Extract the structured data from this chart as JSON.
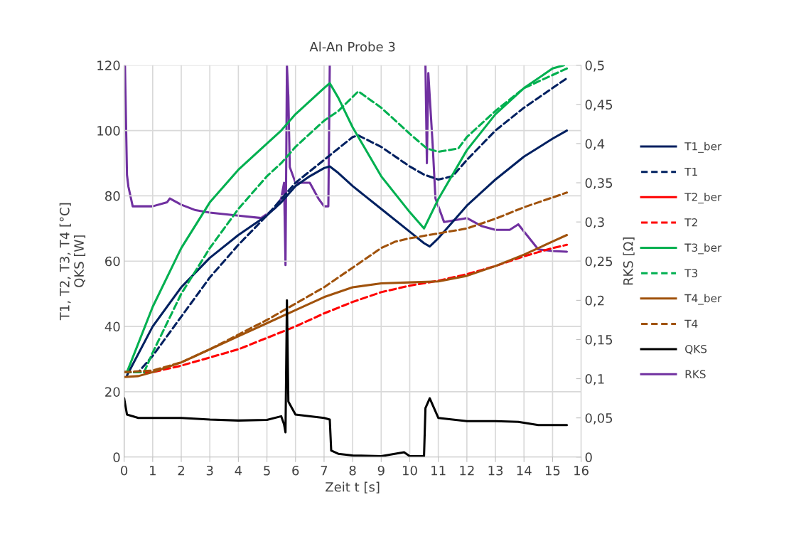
{
  "chart_data": {
    "type": "line",
    "title": "Al-An Probe 3",
    "xlabel": "Zeit t [s]",
    "ylabel": "T1, T2, T3, T4 [°C]\nQKS [W]",
    "y2label": "RKS [Ω]",
    "xlim": [
      0,
      16
    ],
    "xticks": [
      0,
      1,
      2,
      3,
      4,
      5,
      6,
      7,
      8,
      9,
      10,
      11,
      12,
      13,
      14,
      15,
      16
    ],
    "ylim": [
      0,
      120
    ],
    "yticks": [
      0,
      20,
      40,
      60,
      80,
      100,
      120
    ],
    "y2lim": [
      0,
      0.5
    ],
    "y2ticks": [
      {
        "value": 0,
        "label": "0"
      },
      {
        "value": 0.05,
        "label": "0,05"
      },
      {
        "value": 0.1,
        "label": "0,1"
      },
      {
        "value": 0.15,
        "label": "0,15"
      },
      {
        "value": 0.2,
        "label": "0,2"
      },
      {
        "value": 0.25,
        "label": "0,25"
      },
      {
        "value": 0.3,
        "label": "0,3"
      },
      {
        "value": 0.35,
        "label": "0,35"
      },
      {
        "value": 0.4,
        "label": "0,4"
      },
      {
        "value": 0.45,
        "label": "0,45"
      },
      {
        "value": 0.5,
        "label": "0,5"
      }
    ],
    "grid": true,
    "legend": "right",
    "marker": "none",
    "series": [
      {
        "name": "T1_ber",
        "color": "#002060",
        "line_style": "solid",
        "x": [
          0.1,
          1,
          2,
          3,
          4,
          5,
          5.5,
          6,
          6.5,
          7,
          7.2,
          7.5,
          8,
          9,
          10,
          10.5,
          10.7,
          11,
          12,
          13,
          14,
          15,
          15.5
        ],
        "values": [
          25,
          40,
          52,
          61,
          68,
          74,
          78,
          83,
          86,
          88.5,
          89,
          87,
          83,
          76,
          69,
          65.5,
          64.5,
          67,
          77,
          85,
          92,
          97.5,
          100
        ]
      },
      {
        "name": "T1",
        "color": "#002060",
        "line_style": "dashed",
        "x": [
          0,
          0.5,
          1,
          2,
          3,
          4,
          5,
          5.5,
          6,
          7,
          8,
          8.2,
          9,
          10,
          10.5,
          11,
          11.5,
          12,
          13,
          14,
          15,
          15.5
        ],
        "values": [
          26,
          26,
          31,
          43,
          55,
          65,
          74,
          79,
          84,
          91,
          98,
          98.5,
          95,
          89,
          86.5,
          85,
          86,
          91,
          100,
          107,
          113,
          116
        ]
      },
      {
        "name": "T2_ber",
        "color": "#ff0000",
        "line_style": "solid"
      },
      {
        "name": "T2",
        "color": "#ff0000",
        "line_style": "dashed",
        "x": [
          0,
          1,
          2,
          3,
          4,
          5,
          6,
          7,
          8,
          9,
          10,
          11,
          12,
          13,
          14,
          15,
          15.5
        ],
        "values": [
          26,
          26,
          28,
          30.5,
          33,
          36.5,
          40,
          44,
          47.5,
          50.5,
          52.5,
          54,
          56,
          58.5,
          61.5,
          64,
          65
        ]
      },
      {
        "name": "T3_ber",
        "color": "#00b050",
        "line_style": "solid",
        "x": [
          0.1,
          1,
          2,
          3,
          4,
          5,
          5.5,
          6,
          7,
          7.2,
          7.5,
          8,
          9,
          10,
          10.5,
          11,
          12,
          13,
          14,
          15,
          15.4
        ],
        "values": [
          26,
          46,
          64,
          78,
          88,
          96,
          100,
          105,
          113,
          114.5,
          110,
          101,
          86,
          75,
          70,
          79,
          94,
          105,
          113,
          119,
          120
        ]
      },
      {
        "name": "T3",
        "color": "#00b050",
        "line_style": "dashed",
        "x": [
          0,
          0.7,
          1,
          2,
          3,
          4,
          5,
          5.5,
          6,
          7,
          7.5,
          8.2,
          9,
          10,
          10.6,
          11,
          11.7,
          12,
          13,
          14,
          15,
          15.5
        ],
        "values": [
          26,
          26,
          32,
          50,
          64,
          76,
          86,
          90,
          95,
          103,
          106,
          112,
          107,
          99,
          94.5,
          93.5,
          94.5,
          98,
          106,
          113,
          117,
          119
        ]
      },
      {
        "name": "T4_ber",
        "color": "#a0520c",
        "line_style": "solid",
        "x": [
          0,
          0.5,
          1,
          2,
          3,
          4,
          5,
          6,
          7,
          8,
          9,
          10,
          11,
          12,
          13,
          14,
          15,
          15.5
        ],
        "values": [
          24.5,
          24.8,
          26,
          29,
          33,
          37,
          41,
          45,
          49,
          52,
          53.2,
          53.5,
          53.8,
          55.5,
          58.5,
          62,
          66,
          68
        ]
      },
      {
        "name": "T4",
        "color": "#a0520c",
        "line_style": "dashed",
        "x": [
          0,
          1,
          2,
          3,
          4,
          5,
          6,
          7,
          8,
          9,
          9.5,
          10,
          11,
          12,
          13,
          14,
          15,
          15.5
        ],
        "values": [
          26,
          26.5,
          29,
          33,
          37.5,
          42,
          47,
          52,
          58,
          64,
          66,
          67,
          68.5,
          70,
          73,
          76.5,
          79.5,
          81
        ]
      },
      {
        "name": "QKS",
        "color": "#000000",
        "line_style": "solid",
        "x": [
          0,
          0.1,
          0.5,
          1,
          2,
          3,
          4,
          5,
          5.5,
          5.6,
          5.65,
          5.7,
          5.75,
          6,
          7,
          7.2,
          7.25,
          7.5,
          8,
          9,
          9.8,
          10,
          10.5,
          10.55,
          10.7,
          11,
          12,
          13,
          13.8,
          14.5,
          15.5
        ],
        "values": [
          18,
          13,
          12,
          12,
          12,
          11.5,
          11.2,
          11.4,
          12.5,
          10,
          7.6,
          48,
          17,
          13,
          12,
          11.5,
          2,
          1,
          0.5,
          0.3,
          1.5,
          0.3,
          0.3,
          15,
          18,
          12,
          11,
          11,
          10.8,
          9.8,
          9.8
        ]
      },
      {
        "name": "RKS",
        "color": "#7030a0",
        "line_style": "solid",
        "axis": "y2",
        "x": [
          0.03,
          0.1,
          0.15,
          0.3,
          0.5,
          1,
          1.5,
          1.6,
          2,
          2.5,
          3,
          4,
          4.8,
          5,
          5.3,
          5.5,
          5.6,
          5.65,
          5.7,
          5.75,
          5.8,
          6,
          6.5,
          6.8,
          7,
          7.15,
          7.2,
          7.3,
          10.5,
          10.55,
          10.6,
          10.65,
          10.8,
          10.9,
          11.2,
          12,
          12.5,
          13,
          13.5,
          13.8,
          14.5,
          15,
          15.5
        ],
        "values": [
          0.5,
          0.36,
          0.345,
          0.32,
          0.32,
          0.32,
          0.325,
          0.33,
          0.322,
          0.315,
          0.312,
          0.308,
          0.305,
          0.31,
          0.318,
          0.33,
          0.35,
          0.245,
          0.5,
          0.46,
          0.37,
          0.35,
          0.35,
          0.33,
          0.32,
          0.32,
          0.5,
          null,
          null,
          0.5,
          0.375,
          0.49,
          0.4,
          0.33,
          0.3,
          0.305,
          0.295,
          0.29,
          0.29,
          0.297,
          0.265,
          0.263,
          0.262
        ]
      }
    ]
  }
}
